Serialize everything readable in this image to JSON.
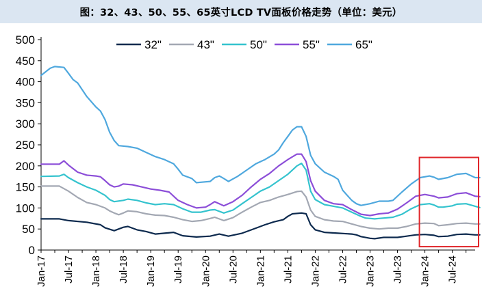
{
  "title": "图：32、43、50、55、65英寸LCD TV面板价格走势（单位：美元）",
  "chart_data": {
    "type": "line",
    "title": "图：32、43、50、55、65英寸LCD TV面板价格走势（单位：美元）",
    "xlabel": "",
    "ylabel": "",
    "ylim": [
      0,
      500
    ],
    "yticks": [
      "0",
      "50",
      "100",
      "150",
      "200",
      "250",
      "300",
      "350",
      "400",
      "450",
      "500"
    ],
    "xticks": [
      "Jan-17",
      "Jul-17",
      "Jan-18",
      "Jul-18",
      "Jan-19",
      "Jul-19",
      "Jan-20",
      "Jul-20",
      "Jan-21",
      "Jul-21",
      "Jan-22",
      "Jul-22",
      "Jan-23",
      "Jul-23",
      "Jan-24",
      "Jul-24"
    ],
    "x_months_range": [
      "Jan-17",
      "Nov-24"
    ],
    "grid": false,
    "legend": "top-center",
    "highlight_box": {
      "from": "Jan-24",
      "to": "Nov-24",
      "color": "#e0262a"
    },
    "series": [
      {
        "name": "32\"",
        "color": "#0d2a4e",
        "points": [
          [
            0,
            74
          ],
          [
            4,
            74
          ],
          [
            6,
            70
          ],
          [
            10,
            66
          ],
          [
            13,
            60
          ],
          [
            14,
            53
          ],
          [
            16,
            46
          ],
          [
            18,
            54
          ],
          [
            19,
            56
          ],
          [
            21,
            48
          ],
          [
            23,
            44
          ],
          [
            25,
            38
          ],
          [
            27,
            40
          ],
          [
            29,
            42
          ],
          [
            31,
            34
          ],
          [
            34,
            31
          ],
          [
            37,
            33
          ],
          [
            39,
            38
          ],
          [
            41,
            33
          ],
          [
            44,
            40
          ],
          [
            47,
            52
          ],
          [
            49,
            60
          ],
          [
            51,
            67
          ],
          [
            53,
            72
          ],
          [
            54,
            80
          ],
          [
            55,
            86
          ],
          [
            57,
            88
          ],
          [
            58,
            86
          ],
          [
            59,
            60
          ],
          [
            60,
            48
          ],
          [
            62,
            42
          ],
          [
            65,
            40
          ],
          [
            68,
            38
          ],
          [
            69,
            36
          ],
          [
            70,
            32
          ],
          [
            72,
            28
          ],
          [
            73,
            27
          ],
          [
            75,
            30
          ],
          [
            78,
            30
          ],
          [
            80,
            33
          ],
          [
            82,
            36
          ],
          [
            84,
            37
          ],
          [
            86,
            35
          ],
          [
            87,
            32
          ],
          [
            89,
            33
          ],
          [
            91,
            37
          ],
          [
            93,
            38
          ],
          [
            95,
            36
          ],
          [
            96,
            36
          ]
        ]
      },
      {
        "name": "43\"",
        "color": "#a3a8b3",
        "points": [
          [
            0,
            152
          ],
          [
            4,
            152
          ],
          [
            6,
            140
          ],
          [
            8,
            125
          ],
          [
            10,
            113
          ],
          [
            12,
            108
          ],
          [
            14,
            100
          ],
          [
            15,
            93
          ],
          [
            16,
            88
          ],
          [
            17,
            84
          ],
          [
            18,
            88
          ],
          [
            19,
            93
          ],
          [
            21,
            91
          ],
          [
            23,
            86
          ],
          [
            25,
            83
          ],
          [
            27,
            82
          ],
          [
            29,
            78
          ],
          [
            31,
            72
          ],
          [
            33,
            68
          ],
          [
            35,
            70
          ],
          [
            37,
            75
          ],
          [
            38,
            78
          ],
          [
            40,
            70
          ],
          [
            42,
            77
          ],
          [
            44,
            90
          ],
          [
            46,
            102
          ],
          [
            48,
            113
          ],
          [
            50,
            118
          ],
          [
            52,
            126
          ],
          [
            54,
            132
          ],
          [
            56,
            139
          ],
          [
            57,
            140
          ],
          [
            58,
            126
          ],
          [
            59,
            95
          ],
          [
            60,
            80
          ],
          [
            62,
            72
          ],
          [
            64,
            69
          ],
          [
            66,
            68
          ],
          [
            68,
            62
          ],
          [
            70,
            56
          ],
          [
            72,
            52
          ],
          [
            74,
            50
          ],
          [
            76,
            52
          ],
          [
            78,
            52
          ],
          [
            80,
            56
          ],
          [
            82,
            62
          ],
          [
            84,
            64
          ],
          [
            86,
            63
          ],
          [
            87,
            58
          ],
          [
            89,
            60
          ],
          [
            91,
            63
          ],
          [
            93,
            64
          ],
          [
            95,
            62
          ],
          [
            96,
            62
          ]
        ]
      },
      {
        "name": "50\"",
        "color": "#34c3ce",
        "points": [
          [
            0,
            175
          ],
          [
            4,
            176
          ],
          [
            5,
            180
          ],
          [
            6,
            172
          ],
          [
            8,
            160
          ],
          [
            10,
            150
          ],
          [
            12,
            142
          ],
          [
            14,
            130
          ],
          [
            15,
            120
          ],
          [
            16,
            115
          ],
          [
            18,
            118
          ],
          [
            19,
            121
          ],
          [
            21,
            118
          ],
          [
            23,
            112
          ],
          [
            25,
            108
          ],
          [
            27,
            110
          ],
          [
            29,
            108
          ],
          [
            31,
            98
          ],
          [
            33,
            90
          ],
          [
            35,
            90
          ],
          [
            37,
            95
          ],
          [
            38,
            96
          ],
          [
            40,
            88
          ],
          [
            42,
            95
          ],
          [
            44,
            110
          ],
          [
            46,
            125
          ],
          [
            48,
            140
          ],
          [
            50,
            150
          ],
          [
            52,
            165
          ],
          [
            54,
            180
          ],
          [
            56,
            200
          ],
          [
            57,
            206
          ],
          [
            58,
            190
          ],
          [
            59,
            140
          ],
          [
            60,
            120
          ],
          [
            62,
            108
          ],
          [
            64,
            104
          ],
          [
            66,
            100
          ],
          [
            68,
            90
          ],
          [
            70,
            80
          ],
          [
            71,
            76
          ],
          [
            73,
            74
          ],
          [
            75,
            76
          ],
          [
            77,
            78
          ],
          [
            79,
            85
          ],
          [
            81,
            98
          ],
          [
            83,
            108
          ],
          [
            85,
            110
          ],
          [
            86,
            107
          ],
          [
            87,
            102
          ],
          [
            88,
            102
          ],
          [
            90,
            105
          ],
          [
            91,
            109
          ],
          [
            93,
            110
          ],
          [
            95,
            104
          ],
          [
            96,
            101
          ]
        ]
      },
      {
        "name": "55\"",
        "color": "#8c4ed8",
        "points": [
          [
            0,
            204
          ],
          [
            4,
            204
          ],
          [
            5,
            212
          ],
          [
            6,
            202
          ],
          [
            8,
            185
          ],
          [
            10,
            178
          ],
          [
            12,
            176
          ],
          [
            13,
            174
          ],
          [
            14,
            165
          ],
          [
            15,
            155
          ],
          [
            16,
            150
          ],
          [
            17,
            152
          ],
          [
            18,
            157
          ],
          [
            20,
            155
          ],
          [
            22,
            150
          ],
          [
            24,
            145
          ],
          [
            26,
            142
          ],
          [
            28,
            138
          ],
          [
            30,
            118
          ],
          [
            32,
            108
          ],
          [
            34,
            100
          ],
          [
            36,
            102
          ],
          [
            37,
            108
          ],
          [
            38,
            115
          ],
          [
            40,
            105
          ],
          [
            42,
            115
          ],
          [
            44,
            130
          ],
          [
            46,
            150
          ],
          [
            48,
            168
          ],
          [
            50,
            182
          ],
          [
            52,
            200
          ],
          [
            54,
            215
          ],
          [
            56,
            228
          ],
          [
            57,
            228
          ],
          [
            58,
            210
          ],
          [
            59,
            165
          ],
          [
            60,
            140
          ],
          [
            62,
            118
          ],
          [
            64,
            110
          ],
          [
            66,
            108
          ],
          [
            68,
            96
          ],
          [
            70,
            85
          ],
          [
            72,
            82
          ],
          [
            74,
            86
          ],
          [
            76,
            88
          ],
          [
            78,
            97
          ],
          [
            80,
            112
          ],
          [
            82,
            128
          ],
          [
            84,
            132
          ],
          [
            86,
            128
          ],
          [
            87,
            124
          ],
          [
            89,
            126
          ],
          [
            91,
            134
          ],
          [
            93,
            136
          ],
          [
            95,
            128
          ],
          [
            96,
            127
          ]
        ]
      },
      {
        "name": "65\"",
        "color": "#4fa8de",
        "points": [
          [
            0,
            415
          ],
          [
            2,
            432
          ],
          [
            3,
            436
          ],
          [
            5,
            434
          ],
          [
            6,
            420
          ],
          [
            7,
            405
          ],
          [
            8,
            397
          ],
          [
            10,
            365
          ],
          [
            12,
            340
          ],
          [
            13,
            330
          ],
          [
            14,
            310
          ],
          [
            15,
            280
          ],
          [
            16,
            260
          ],
          [
            17,
            248
          ],
          [
            19,
            246
          ],
          [
            21,
            242
          ],
          [
            23,
            232
          ],
          [
            25,
            222
          ],
          [
            27,
            215
          ],
          [
            29,
            205
          ],
          [
            30,
            192
          ],
          [
            31,
            178
          ],
          [
            33,
            170
          ],
          [
            34,
            160
          ],
          [
            36,
            162
          ],
          [
            37,
            163
          ],
          [
            38,
            172
          ],
          [
            39,
            176
          ],
          [
            40,
            170
          ],
          [
            41,
            163
          ],
          [
            43,
            175
          ],
          [
            45,
            190
          ],
          [
            47,
            205
          ],
          [
            49,
            215
          ],
          [
            51,
            228
          ],
          [
            52,
            238
          ],
          [
            53,
            255
          ],
          [
            54,
            270
          ],
          [
            55,
            285
          ],
          [
            56,
            293
          ],
          [
            57,
            293
          ],
          [
            58,
            270
          ],
          [
            59,
            225
          ],
          [
            60,
            205
          ],
          [
            62,
            185
          ],
          [
            64,
            175
          ],
          [
            65,
            168
          ],
          [
            66,
            142
          ],
          [
            68,
            118
          ],
          [
            69,
            110
          ],
          [
            70,
            106
          ],
          [
            72,
            110
          ],
          [
            74,
            116
          ],
          [
            76,
            116
          ],
          [
            77,
            118
          ],
          [
            79,
            138
          ],
          [
            81,
            157
          ],
          [
            83,
            172
          ],
          [
            85,
            176
          ],
          [
            86,
            173
          ],
          [
            87,
            168
          ],
          [
            89,
            172
          ],
          [
            91,
            180
          ],
          [
            93,
            182
          ],
          [
            95,
            172
          ],
          [
            96,
            172
          ]
        ]
      }
    ]
  }
}
